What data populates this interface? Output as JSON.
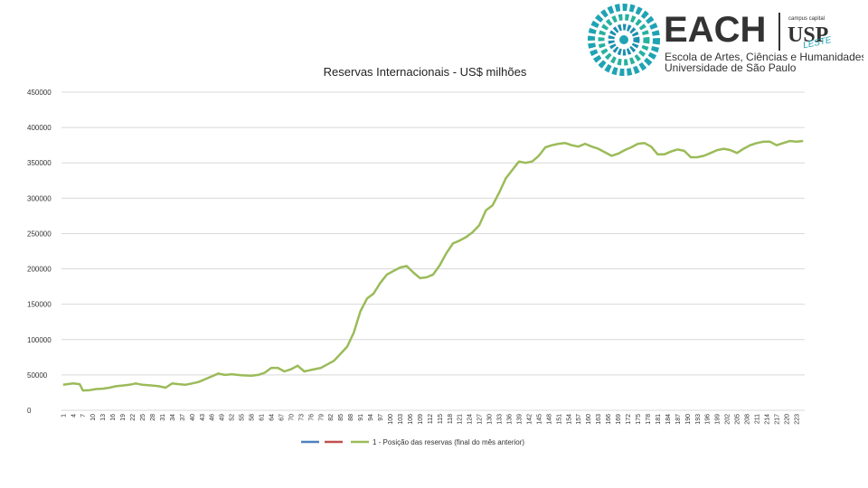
{
  "logo": {
    "name": "EACH",
    "school": "Escola de Artes, Ciências e Humanidades",
    "university": "Universidade de São Paulo",
    "campus": "campus capital",
    "campus_mark": "USP",
    "campus_suffix": "LESTE"
  },
  "colors": {
    "series_line": "#9bbb59",
    "legend_blue": "#4f81bd",
    "legend_red": "#c0504d",
    "grid": "#d9d9d9",
    "logo_teal": "#1fa3b4"
  },
  "chart_data": {
    "type": "line",
    "title": "Reservas Internacionais - US$ milhões",
    "xlabel": "",
    "ylabel": "",
    "ylim": [
      0,
      450000
    ],
    "yticks": [
      0,
      50000,
      100000,
      150000,
      200000,
      250000,
      300000,
      350000,
      400000,
      450000
    ],
    "ytick_labels": [
      "0",
      "50000",
      "100000",
      "150000",
      "200000",
      "250000",
      "300000",
      "350000",
      "400000",
      "450000"
    ],
    "x_count": 225,
    "xtick_labels": [
      "1",
      "4",
      "7",
      "10",
      "13",
      "16",
      "19",
      "22",
      "25",
      "28",
      "31",
      "34",
      "37",
      "40",
      "43",
      "46",
      "49",
      "52",
      "55",
      "58",
      "61",
      "64",
      "67",
      "70",
      "73",
      "76",
      "79",
      "82",
      "85",
      "88",
      "91",
      "94",
      "97",
      "100",
      "103",
      "106",
      "109",
      "112",
      "115",
      "118",
      "121",
      "124",
      "127",
      "130",
      "133",
      "136",
      "139",
      "142",
      "145",
      "148",
      "151",
      "154",
      "157",
      "160",
      "163",
      "166",
      "169",
      "172",
      "175",
      "178",
      "181",
      "184",
      "187",
      "190",
      "193",
      "196",
      "199",
      "202",
      "205",
      "208",
      "211",
      "214",
      "217",
      "220",
      "223"
    ],
    "grid": true,
    "legend_position": "bottom",
    "legend": [
      "",
      "",
      "1 - Posição das reservas (final do mês anterior)"
    ],
    "series": [
      {
        "name": "1 - Posição das reservas (final do mês anterior)",
        "x": [
          1,
          4,
          6,
          7,
          9,
          11,
          13,
          15,
          17,
          19,
          21,
          23,
          25,
          28,
          30,
          32,
          34,
          36,
          38,
          40,
          42,
          44,
          46,
          48,
          50,
          52,
          55,
          58,
          60,
          62,
          64,
          66,
          68,
          70,
          72,
          74,
          75,
          77,
          79,
          81,
          83,
          85,
          87,
          89,
          91,
          93,
          95,
          97,
          99,
          101,
          103,
          105,
          107,
          109,
          111,
          113,
          115,
          117,
          119,
          121,
          123,
          125,
          127,
          129,
          131,
          133,
          135,
          137,
          139,
          141,
          143,
          145,
          147,
          149,
          151,
          153,
          155,
          157,
          159,
          161,
          163,
          165,
          167,
          169,
          171,
          173,
          175,
          177,
          179,
          181,
          183,
          185,
          187,
          189,
          191,
          193,
          195,
          197,
          199,
          201,
          203,
          205,
          207,
          209,
          211,
          213,
          215,
          217,
          219,
          221,
          223,
          225
        ],
        "y": [
          36000,
          38000,
          37000,
          28000,
          28500,
          30000,
          30500,
          32000,
          34000,
          35000,
          36000,
          38000,
          36000,
          35000,
          34000,
          32000,
          38000,
          37000,
          36000,
          38000,
          40000,
          44000,
          48000,
          52000,
          50000,
          51000,
          49500,
          49000,
          50000,
          53000,
          60000,
          60000,
          55000,
          58000,
          63000,
          55000,
          56000,
          58000,
          60000,
          65000,
          70000,
          80000,
          90000,
          110000,
          140000,
          158000,
          165000,
          180000,
          192000,
          197000,
          202000,
          204000,
          195000,
          187000,
          188000,
          192000,
          205000,
          222000,
          236000,
          240000,
          245000,
          252000,
          262000,
          283000,
          290000,
          308000,
          328000,
          340000,
          352000,
          350000,
          352000,
          360000,
          372000,
          375000,
          377000,
          378000,
          375000,
          373000,
          377000,
          373000,
          370000,
          365000,
          360000,
          363000,
          368000,
          372000,
          377000,
          378000,
          373000,
          362000,
          362000,
          366000,
          369000,
          367000,
          358000,
          358000,
          360000,
          364000,
          368000,
          370000,
          368000,
          364000,
          370000,
          375000,
          378000,
          380000,
          380000,
          375000,
          378000,
          381000,
          380000,
          381000
        ]
      }
    ]
  }
}
